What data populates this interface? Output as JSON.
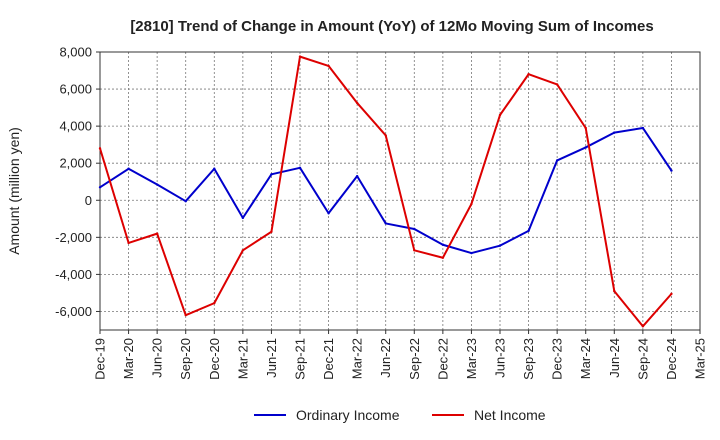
{
  "chart_data": {
    "type": "line",
    "title": "[2810]  Trend of Change in Amount (YoY) of 12Mo Moving Sum of Incomes",
    "xlabel": "",
    "ylabel": "Amount (million yen)",
    "ylim": [
      -7000,
      8000
    ],
    "yticks": [
      -6000,
      -4000,
      -2000,
      0,
      2000,
      4000,
      6000,
      8000
    ],
    "ytick_labels": [
      "-6,000",
      "-4,000",
      "-2,000",
      "0",
      "2,000",
      "4,000",
      "6,000",
      "8,000"
    ],
    "x": [
      "Dec-19",
      "Mar-20",
      "Jun-20",
      "Sep-20",
      "Dec-20",
      "Mar-21",
      "Jun-21",
      "Sep-21",
      "Dec-21",
      "Mar-22",
      "Jun-22",
      "Sep-22",
      "Dec-22",
      "Mar-23",
      "Jun-23",
      "Sep-23",
      "Dec-23",
      "Mar-24",
      "Jun-24",
      "Sep-24",
      "Dec-24",
      "Mar-25"
    ],
    "grid": true,
    "legend_position": "bottom-center",
    "series": [
      {
        "name": "Ordinary Income",
        "color": "#0000cc",
        "values": [
          700,
          1700,
          850,
          -50,
          1700,
          -950,
          1400,
          1750,
          -700,
          1300,
          -1250,
          -1550,
          -2400,
          -2850,
          -2450,
          -1650,
          2150,
          2850,
          3650,
          3900,
          1600,
          null
        ]
      },
      {
        "name": "Net Income",
        "color": "#dd0000",
        "values": [
          2800,
          -2300,
          -1800,
          -6200,
          -5550,
          -2700,
          -1700,
          7750,
          7250,
          5250,
          3500,
          -2700,
          -3100,
          -200,
          4600,
          6800,
          6250,
          3900,
          -4900,
          -6800,
          -5050,
          null
        ]
      }
    ]
  }
}
